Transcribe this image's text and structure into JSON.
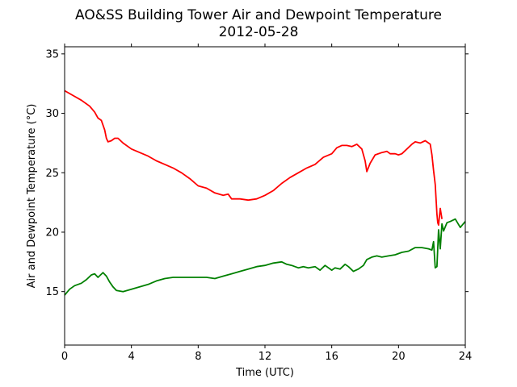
{
  "chart_data": {
    "type": "line",
    "title": "AO&SS Building Tower Air and Dewpoint Temperature",
    "subtitle": "2012-05-28",
    "xlabel": "Time (UTC)",
    "ylabel": "Air and Dewpoint Temperature (°C)",
    "xlim": [
      0,
      24
    ],
    "ylim": [
      10.5,
      35.6
    ],
    "xticks": [
      0,
      4,
      8,
      12,
      16,
      20,
      24
    ],
    "yticks": [
      15,
      20,
      25,
      30,
      35
    ],
    "grid": false,
    "series": [
      {
        "color": "#ff0000",
        "x": [
          0,
          0.5,
          1,
          1.5,
          1.8,
          2,
          2.2,
          2.4,
          2.5,
          2.6,
          2.8,
          3,
          3.2,
          3.5,
          4,
          4.5,
          5,
          5.5,
          6,
          6.5,
          7,
          7.5,
          8,
          8.5,
          9,
          9.5,
          9.8,
          10,
          10.5,
          11,
          11.5,
          12,
          12.5,
          13,
          13.5,
          14,
          14.5,
          15,
          15.5,
          16,
          16.3,
          16.6,
          16.9,
          17.2,
          17.5,
          17.8,
          18,
          18.1,
          18.3,
          18.6,
          19,
          19.3,
          19.5,
          19.8,
          20,
          20.2,
          20.5,
          20.8,
          21,
          21.3,
          21.6,
          21.9,
          22,
          22.1,
          22.2,
          22.3,
          22.35,
          22.4,
          22.5,
          22.6
        ],
        "y": [
          31.9,
          31.5,
          31.1,
          30.6,
          30.1,
          29.6,
          29.4,
          28.6,
          27.9,
          27.6,
          27.7,
          27.9,
          27.9,
          27.5,
          27.0,
          26.7,
          26.4,
          26.0,
          25.7,
          25.4,
          25.0,
          24.5,
          23.9,
          23.7,
          23.3,
          23.1,
          23.2,
          22.8,
          22.8,
          22.7,
          22.8,
          23.1,
          23.5,
          24.1,
          24.6,
          25.0,
          25.4,
          25.7,
          26.3,
          26.6,
          27.1,
          27.3,
          27.3,
          27.2,
          27.4,
          27.0,
          26.0,
          25.1,
          25.8,
          26.5,
          26.7,
          26.8,
          26.6,
          26.6,
          26.5,
          26.6,
          27.0,
          27.4,
          27.6,
          27.5,
          27.7,
          27.4,
          26.5,
          25.2,
          24.0,
          21.5,
          20.8,
          20.6,
          22.0,
          21.1
        ]
      },
      {
        "color": "#008000",
        "x": [
          0,
          0.3,
          0.6,
          1,
          1.3,
          1.6,
          1.8,
          2,
          2.3,
          2.5,
          2.7,
          2.9,
          3.1,
          3.5,
          4,
          4.5,
          5,
          5.5,
          6,
          6.5,
          7,
          7.5,
          8,
          8.5,
          9,
          9.5,
          10,
          10.5,
          11,
          11.5,
          12,
          12.5,
          13,
          13.3,
          13.6,
          14,
          14.3,
          14.6,
          15,
          15.3,
          15.6,
          16,
          16.2,
          16.5,
          16.8,
          17,
          17.3,
          17.6,
          17.9,
          18.1,
          18.4,
          18.7,
          19,
          19.4,
          19.8,
          20.2,
          20.6,
          21,
          21.4,
          21.8,
          22,
          22.1,
          22.2,
          22.3,
          22.4,
          22.5,
          22.6,
          22.7,
          22.9,
          23.1,
          23.4,
          23.7,
          24
        ],
        "y": [
          14.7,
          15.2,
          15.5,
          15.7,
          16.0,
          16.4,
          16.5,
          16.2,
          16.6,
          16.3,
          15.8,
          15.4,
          15.1,
          15.0,
          15.2,
          15.4,
          15.6,
          15.9,
          16.1,
          16.2,
          16.2,
          16.2,
          16.2,
          16.2,
          16.1,
          16.3,
          16.5,
          16.7,
          16.9,
          17.1,
          17.2,
          17.4,
          17.5,
          17.3,
          17.2,
          17.0,
          17.1,
          17.0,
          17.1,
          16.8,
          17.2,
          16.8,
          17.0,
          16.9,
          17.3,
          17.1,
          16.7,
          16.9,
          17.2,
          17.7,
          17.9,
          18.0,
          17.9,
          18.0,
          18.1,
          18.3,
          18.4,
          18.7,
          18.7,
          18.6,
          18.5,
          19.2,
          17.0,
          17.1,
          20.2,
          18.6,
          20.7,
          20.1,
          20.8,
          20.9,
          21.1,
          20.4,
          20.9
        ]
      }
    ]
  }
}
